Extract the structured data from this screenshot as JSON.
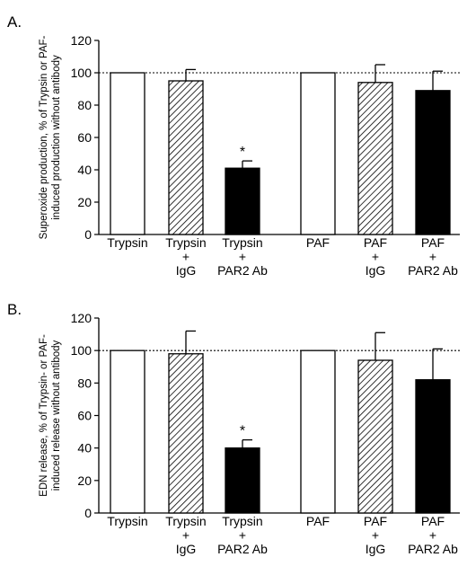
{
  "chart_data": [
    {
      "type": "bar",
      "panel_label": "A.",
      "ylabel_lines": [
        "Superoxide production, % of Trypsin or PAF-",
        "induced production without antibody"
      ],
      "ylim": [
        0,
        120
      ],
      "yticks": [
        0,
        20,
        40,
        60,
        80,
        100,
        120
      ],
      "reference_line": 100,
      "categories": [
        [
          "Trypsin"
        ],
        [
          "Trypsin",
          "+",
          "IgG"
        ],
        [
          "Trypsin",
          "+",
          "PAR2 Ab"
        ],
        [
          "PAF"
        ],
        [
          "PAF",
          "+",
          "IgG"
        ],
        [
          "PAF",
          "+",
          "PAR2 Ab"
        ]
      ],
      "values": [
        100,
        95,
        41,
        100,
        94,
        89
      ],
      "errors": [
        0,
        7,
        4.5,
        0,
        11,
        12
      ],
      "fills": [
        "white",
        "hatch",
        "black",
        "white",
        "hatch",
        "black"
      ],
      "significance": [
        "",
        "",
        "*",
        "",
        "",
        ""
      ]
    },
    {
      "type": "bar",
      "panel_label": "B.",
      "ylabel_lines": [
        "EDN release, % of Trypsin- or PAF-",
        "induced release without antibody"
      ],
      "ylim": [
        0,
        120
      ],
      "yticks": [
        0,
        20,
        40,
        60,
        80,
        100,
        120
      ],
      "reference_line": 100,
      "categories": [
        [
          "Trypsin"
        ],
        [
          "Trypsin",
          "+",
          "IgG"
        ],
        [
          "Trypsin",
          "+",
          "PAR2 Ab"
        ],
        [
          "PAF"
        ],
        [
          "PAF",
          "+",
          "IgG"
        ],
        [
          "PAF",
          "+",
          "PAR2 Ab"
        ]
      ],
      "values": [
        100,
        98,
        40,
        100,
        94,
        82
      ],
      "errors": [
        0,
        14,
        5,
        0,
        17,
        19
      ],
      "fills": [
        "white",
        "hatch",
        "black",
        "white",
        "hatch",
        "black"
      ],
      "significance": [
        "",
        "",
        "*",
        "",
        "",
        ""
      ]
    }
  ]
}
